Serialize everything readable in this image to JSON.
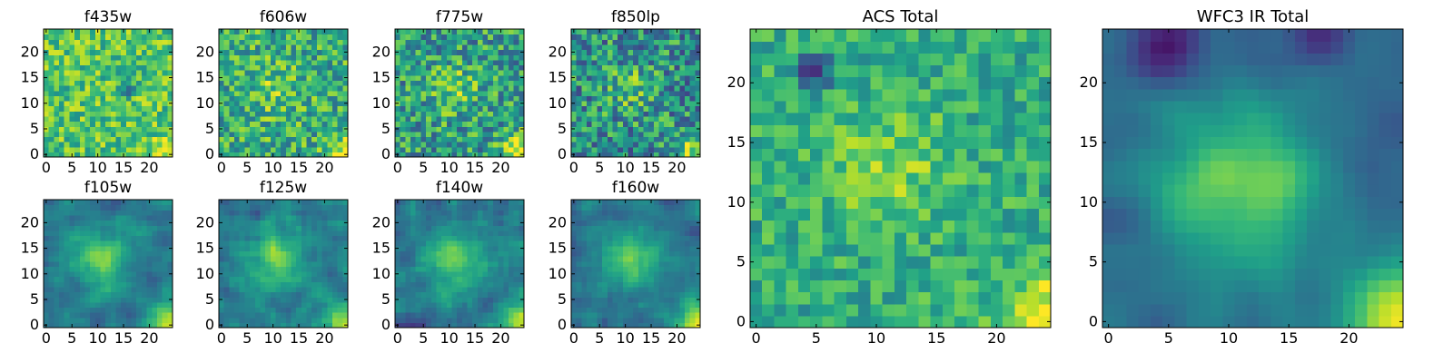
{
  "chart_data": {
    "type": "heatmap",
    "colormap": "viridis",
    "colormap_stops": [
      "#440154",
      "#482878",
      "#3e4989",
      "#31688e",
      "#26828e",
      "#1f9e89",
      "#35b779",
      "#6ece58",
      "#b5de2b",
      "#fde725"
    ],
    "grid_size": [
      25,
      25
    ],
    "panels": [
      {
        "title": "f435w",
        "xticks": [
          "0",
          "5",
          "10",
          "15",
          "20"
        ],
        "yticks": [
          "0",
          "5",
          "10",
          "15",
          "20"
        ],
        "xlim": [
          -0.5,
          24.5
        ],
        "ylim": [
          -0.5,
          24.5
        ],
        "field": {
          "background": 0.72,
          "noise": 0.22,
          "seed": 11,
          "smooth": 0,
          "sources": [
            {
              "x": 24,
              "y": 0,
              "amp": 0.28,
              "sigma": 2.5
            }
          ],
          "holes": [
            {
              "x": 16,
              "y": 13,
              "amp": 0.55,
              "sigma": 0.8
            }
          ]
        }
      },
      {
        "title": "f606w",
        "xticks": [
          "0",
          "5",
          "10",
          "15",
          "20"
        ],
        "yticks": [
          "0",
          "5",
          "10",
          "15",
          "20"
        ],
        "xlim": [
          -0.5,
          24.5
        ],
        "ylim": [
          -0.5,
          24.5
        ],
        "field": {
          "background": 0.62,
          "noise": 0.26,
          "seed": 23,
          "smooth": 0,
          "sources": [
            {
              "x": 24,
              "y": 0,
              "amp": 0.35,
              "sigma": 2.5
            },
            {
              "x": 10,
              "y": 13,
              "amp": 0.15,
              "sigma": 3.5
            }
          ],
          "holes": []
        }
      },
      {
        "title": "f775w",
        "xticks": [
          "0",
          "5",
          "10",
          "15",
          "20"
        ],
        "yticks": [
          "0",
          "5",
          "10",
          "15",
          "20"
        ],
        "xlim": [
          -0.5,
          24.5
        ],
        "ylim": [
          -0.5,
          24.5
        ],
        "field": {
          "background": 0.55,
          "noise": 0.28,
          "seed": 37,
          "smooth": 0,
          "sources": [
            {
              "x": 24,
              "y": 0,
              "amp": 0.42,
              "sigma": 2.8
            },
            {
              "x": 11,
              "y": 13,
              "amp": 0.2,
              "sigma": 3.5
            }
          ],
          "holes": []
        }
      },
      {
        "title": "f850lp",
        "xticks": [
          "0",
          "5",
          "10",
          "15",
          "20"
        ],
        "yticks": [
          "0",
          "5",
          "10",
          "15",
          "20"
        ],
        "xlim": [
          -0.5,
          24.5
        ],
        "ylim": [
          -0.5,
          24.5
        ],
        "field": {
          "background": 0.5,
          "noise": 0.3,
          "seed": 53,
          "smooth": 0,
          "sources": [
            {
              "x": 24,
              "y": 0,
              "amp": 0.45,
              "sigma": 2.8
            },
            {
              "x": 11,
              "y": 13,
              "amp": 0.18,
              "sigma": 3.5
            }
          ],
          "holes": []
        }
      },
      {
        "title": "f105w",
        "xticks": [
          "0",
          "5",
          "10",
          "15",
          "20"
        ],
        "yticks": [
          "0",
          "5",
          "10",
          "15",
          "20"
        ],
        "xlim": [
          -0.5,
          24.5
        ],
        "ylim": [
          -0.5,
          24.5
        ],
        "field": {
          "background": 0.4,
          "noise": 0.16,
          "seed": 71,
          "smooth": 1,
          "sources": [
            {
              "x": 24,
              "y": 0,
              "amp": 0.55,
              "sigma": 3.0
            },
            {
              "x": 11,
              "y": 13,
              "amp": 0.35,
              "sigma": 4.0
            }
          ],
          "holes": []
        }
      },
      {
        "title": "f125w",
        "xticks": [
          "0",
          "5",
          "10",
          "15",
          "20"
        ],
        "yticks": [
          "0",
          "5",
          "10",
          "15",
          "20"
        ],
        "xlim": [
          -0.5,
          24.5
        ],
        "ylim": [
          -0.5,
          24.5
        ],
        "field": {
          "background": 0.42,
          "noise": 0.18,
          "seed": 89,
          "smooth": 1,
          "sources": [
            {
              "x": 24,
              "y": 0,
              "amp": 0.5,
              "sigma": 3.0
            },
            {
              "x": 11,
              "y": 13,
              "amp": 0.35,
              "sigma": 4.0
            }
          ],
          "holes": []
        }
      },
      {
        "title": "f140w",
        "xticks": [
          "0",
          "5",
          "10",
          "15",
          "20"
        ],
        "yticks": [
          "0",
          "5",
          "10",
          "15",
          "20"
        ],
        "xlim": [
          -0.5,
          24.5
        ],
        "ylim": [
          -0.5,
          24.5
        ],
        "field": {
          "background": 0.4,
          "noise": 0.17,
          "seed": 97,
          "smooth": 1,
          "sources": [
            {
              "x": 24,
              "y": 0,
              "amp": 0.55,
              "sigma": 3.0
            },
            {
              "x": 11,
              "y": 13,
              "amp": 0.33,
              "sigma": 4.0
            }
          ],
          "holes": []
        }
      },
      {
        "title": "f160w",
        "xticks": [
          "0",
          "5",
          "10",
          "15",
          "20"
        ],
        "yticks": [
          "0",
          "5",
          "10",
          "15",
          "20"
        ],
        "xlim": [
          -0.5,
          24.5
        ],
        "ylim": [
          -0.5,
          24.5
        ],
        "field": {
          "background": 0.38,
          "noise": 0.15,
          "seed": 113,
          "smooth": 1,
          "sources": [
            {
              "x": 24,
              "y": 0,
              "amp": 0.6,
              "sigma": 3.2
            },
            {
              "x": 11,
              "y": 13,
              "amp": 0.35,
              "sigma": 4.2
            }
          ],
          "holes": []
        }
      },
      {
        "title": "ACS Total",
        "xticks": [
          "0",
          "5",
          "10",
          "15",
          "20"
        ],
        "yticks": [
          "0",
          "5",
          "10",
          "15",
          "20"
        ],
        "xlim": [
          -0.5,
          24.5
        ],
        "ylim": [
          -0.5,
          24.5
        ],
        "field": {
          "background": 0.62,
          "noise": 0.17,
          "seed": 131,
          "smooth": 0,
          "sources": [
            {
              "x": 24,
              "y": 0,
              "amp": 0.38,
              "sigma": 3.0
            },
            {
              "x": 11,
              "y": 13,
              "amp": 0.2,
              "sigma": 3.5
            }
          ],
          "holes": [
            {
              "x": 5,
              "y": 21,
              "amp": 0.55,
              "sigma": 1.0
            }
          ]
        }
      },
      {
        "title": "WFC3 IR Total",
        "xticks": [
          "0",
          "5",
          "10",
          "15",
          "20"
        ],
        "yticks": [
          "0",
          "5",
          "10",
          "15",
          "20"
        ],
        "xlim": [
          -0.5,
          24.5
        ],
        "ylim": [
          -0.5,
          24.5
        ],
        "field": {
          "background": 0.36,
          "noise": 0.08,
          "seed": 151,
          "smooth": 2,
          "sources": [
            {
              "x": 24,
              "y": 0,
              "amp": 0.6,
              "sigma": 3.2
            },
            {
              "x": 11,
              "y": 12,
              "amp": 0.42,
              "sigma": 4.5
            }
          ],
          "holes": [
            {
              "x": 5,
              "y": 23,
              "amp": 0.25,
              "sigma": 2.0
            },
            {
              "x": 18,
              "y": 24,
              "amp": 0.18,
              "sigma": 2.0
            }
          ]
        }
      }
    ]
  }
}
